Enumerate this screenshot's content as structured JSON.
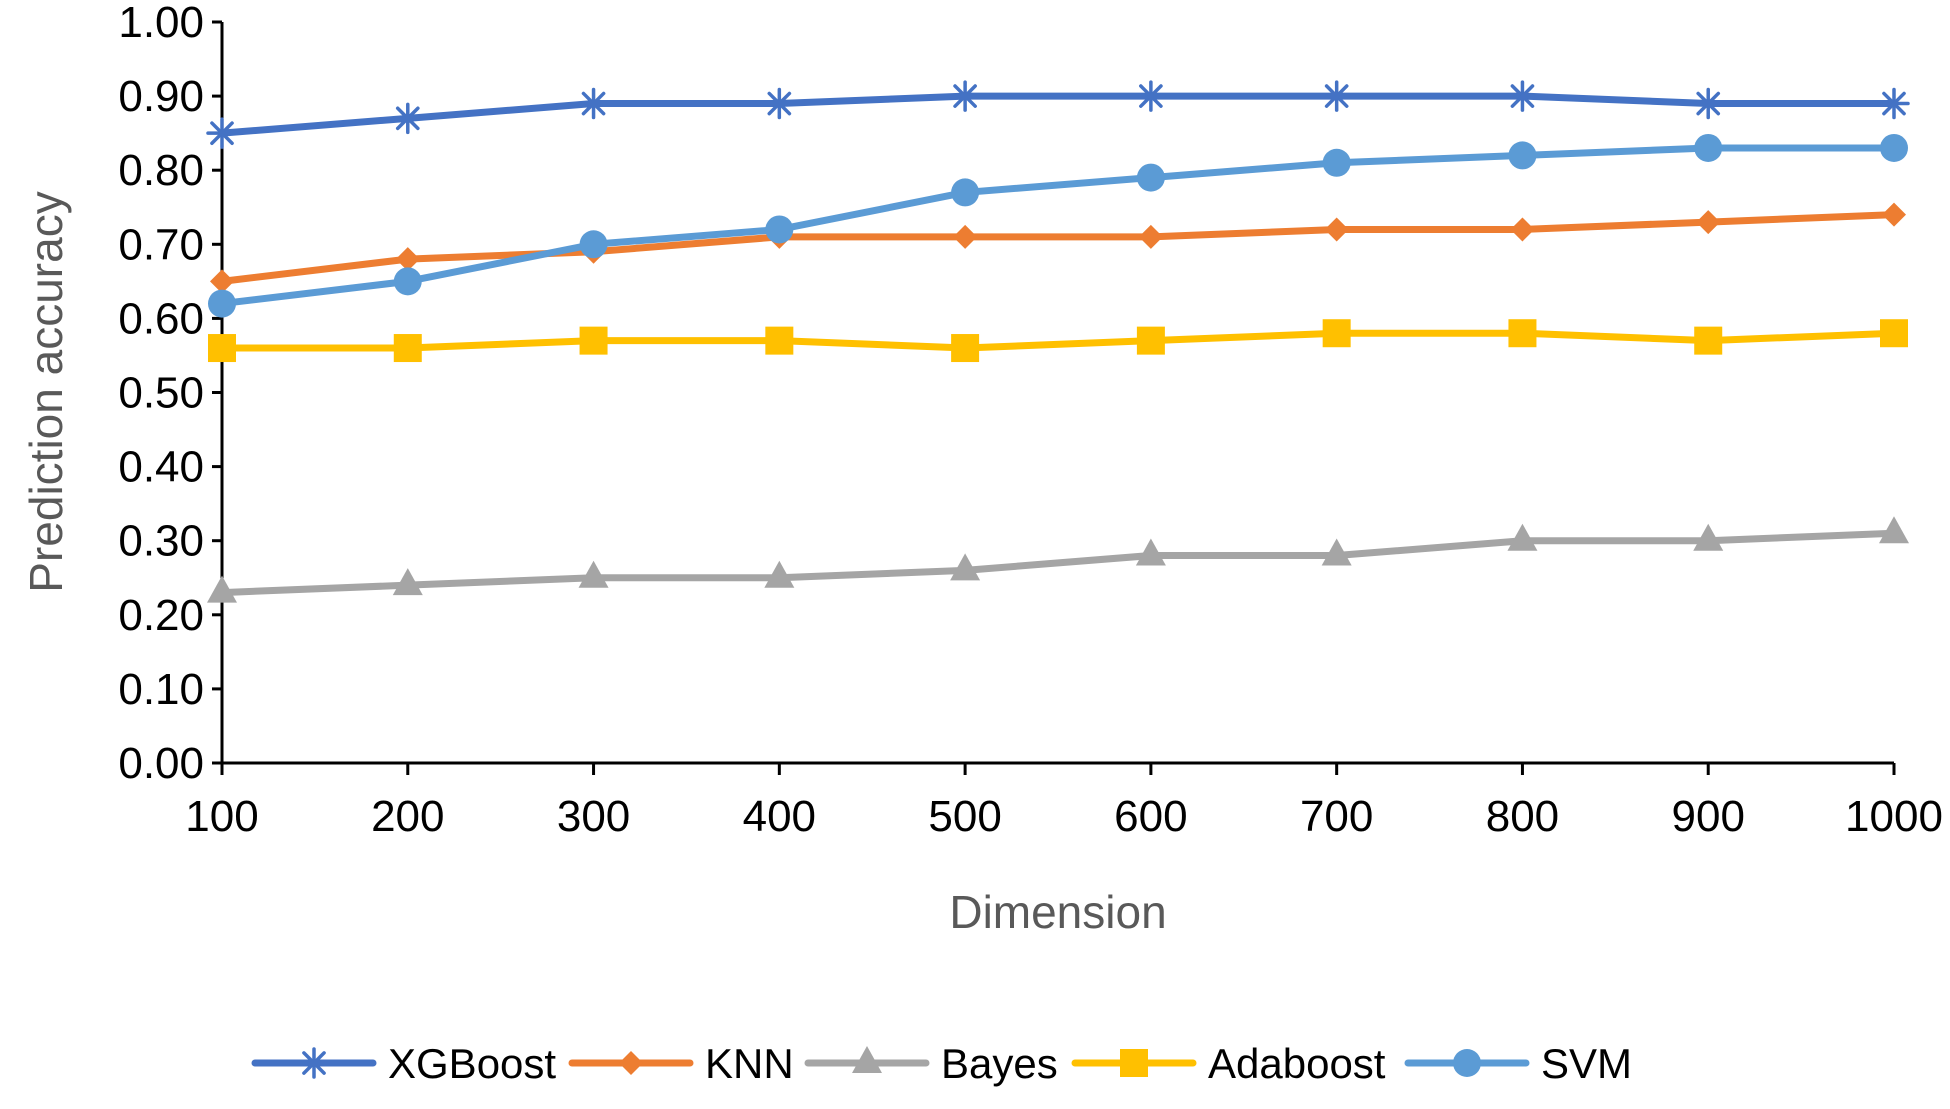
{
  "chart_data": {
    "type": "line",
    "xlabel": "Dimension",
    "ylabel": "Prediction accuracy",
    "ylim": [
      0,
      1
    ],
    "y_ticks": [
      "0.00",
      "0.10",
      "0.20",
      "0.30",
      "0.40",
      "0.50",
      "0.60",
      "0.70",
      "0.80",
      "0.90",
      "1.00"
    ],
    "x": [
      100,
      200,
      300,
      400,
      500,
      600,
      700,
      800,
      900,
      1000
    ],
    "x_ticks": [
      "100",
      "200",
      "300",
      "400",
      "500",
      "600",
      "700",
      "800",
      "900",
      "1000"
    ],
    "grid": false,
    "legend_position": "bottom",
    "series": [
      {
        "name": "XGBoost",
        "marker": "asterisk",
        "color": "#4472C4",
        "values": [
          0.85,
          0.87,
          0.89,
          0.89,
          0.9,
          0.9,
          0.9,
          0.9,
          0.89,
          0.89
        ]
      },
      {
        "name": "KNN",
        "marker": "diamond",
        "color": "#ED7D31",
        "values": [
          0.65,
          0.68,
          0.69,
          0.71,
          0.71,
          0.71,
          0.72,
          0.72,
          0.73,
          0.74
        ]
      },
      {
        "name": "Bayes",
        "marker": "triangle",
        "color": "#A5A5A5",
        "values": [
          0.23,
          0.24,
          0.25,
          0.25,
          0.26,
          0.28,
          0.28,
          0.3,
          0.3,
          0.31
        ]
      },
      {
        "name": "Adaboost",
        "marker": "square",
        "color": "#FFC000",
        "values": [
          0.56,
          0.56,
          0.57,
          0.57,
          0.56,
          0.57,
          0.58,
          0.58,
          0.57,
          0.58
        ]
      },
      {
        "name": "SVM",
        "marker": "circle",
        "color": "#5B9BD5",
        "values": [
          0.62,
          0.65,
          0.7,
          0.72,
          0.77,
          0.79,
          0.81,
          0.82,
          0.83,
          0.83
        ]
      }
    ]
  }
}
